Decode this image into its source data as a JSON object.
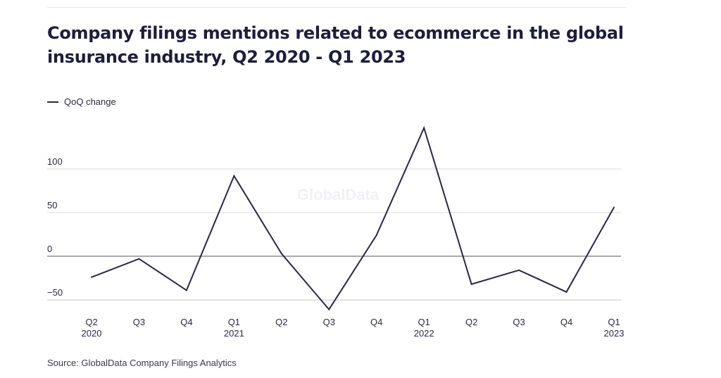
{
  "header": {
    "title": "Company filings mentions related to ecommerce in the global insurance industry, Q2 2020 - Q1 2023"
  },
  "watermark": "GlobalData",
  "source": "Source: GlobalData Company Filings Analytics",
  "colors": {
    "line": "#2a2745",
    "grid": "#d9d9d9",
    "zero": "#555555"
  },
  "chart_data": {
    "type": "line",
    "title": "Company filings mentions related to ecommerce in the global insurance industry, Q2 2020 - Q1 2023",
    "categories": [
      "Q2 2020",
      "Q3",
      "Q4",
      "Q1 2021",
      "Q2",
      "Q3",
      "Q4",
      "Q1 2022",
      "Q2",
      "Q3",
      "Q4",
      "Q1 2023"
    ],
    "x_tick_labels": [
      {
        "quarter": "Q2",
        "year": "2020"
      },
      {
        "quarter": "Q3",
        "year": ""
      },
      {
        "quarter": "Q4",
        "year": ""
      },
      {
        "quarter": "Q1",
        "year": "2021"
      },
      {
        "quarter": "Q2",
        "year": ""
      },
      {
        "quarter": "Q3",
        "year": ""
      },
      {
        "quarter": "Q4",
        "year": ""
      },
      {
        "quarter": "Q1",
        "year": "2022"
      },
      {
        "quarter": "Q2",
        "year": ""
      },
      {
        "quarter": "Q3",
        "year": ""
      },
      {
        "quarter": "Q4",
        "year": ""
      },
      {
        "quarter": "Q1",
        "year": "2023"
      }
    ],
    "series": [
      {
        "name": "QoQ change",
        "values": [
          -24,
          -3,
          -39,
          92,
          3,
          -61,
          24,
          147,
          -32,
          -16,
          -41,
          56
        ]
      }
    ],
    "y_ticks": [
      100,
      50,
      0,
      -50
    ],
    "y_tick_labels": [
      "100",
      "50",
      "0",
      "−50"
    ],
    "ylim": [
      -60,
      150
    ],
    "grid": true,
    "legend": "top-left"
  }
}
